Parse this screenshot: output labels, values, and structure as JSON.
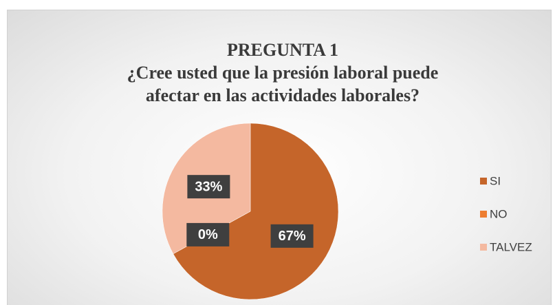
{
  "chart_data": {
    "type": "pie",
    "title": "PREGUNTA 1",
    "subtitle": "¿Cree usted que la presión laboral puede afectar en las actividades laborales?",
    "categories": [
      "SI",
      "NO",
      "TALVEZ"
    ],
    "values": [
      67,
      0,
      33
    ],
    "value_labels": [
      "67%",
      "0%",
      "33%"
    ],
    "colors": [
      "#c5652a",
      "#ed7d31",
      "#f4b9a0"
    ],
    "legend": "right"
  }
}
